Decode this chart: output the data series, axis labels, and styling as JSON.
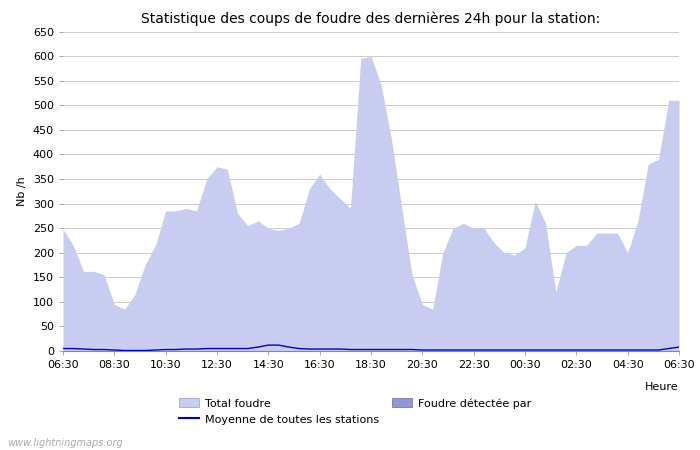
{
  "title": "Statistique des coups de foudre des dernières 24h pour la station:",
  "xlabel": "Heure",
  "ylabel": "Nb /h",
  "watermark": "www.lightningmaps.org",
  "ylim": [
    0,
    650
  ],
  "yticks": [
    0,
    50,
    100,
    150,
    200,
    250,
    300,
    350,
    400,
    450,
    500,
    550,
    600,
    650
  ],
  "x_labels": [
    "06:30",
    "08:30",
    "10:30",
    "12:30",
    "14:30",
    "16:30",
    "18:30",
    "20:30",
    "22:30",
    "00:30",
    "02:30",
    "04:30",
    "06:30"
  ],
  "total_foudre_color": "#c8ccf0",
  "foudre_detectee_color": "#9098d8",
  "moyenne_color": "#0000cc",
  "background_color": "#ffffff",
  "grid_color": "#cccccc",
  "title_fontsize": 10,
  "tick_fontsize": 8,
  "legend_fontsize": 8,
  "total_foudre_values": [
    248,
    215,
    162,
    162,
    155,
    95,
    85,
    115,
    175,
    215,
    285,
    285,
    290,
    285,
    350,
    375,
    370,
    280,
    255,
    265,
    250,
    245,
    250,
    260,
    330,
    360,
    330,
    310,
    290,
    595,
    600,
    540,
    430,
    290,
    155,
    95,
    85,
    200,
    250,
    260,
    250,
    250,
    220,
    200,
    195,
    210,
    305,
    260,
    120,
    200,
    215,
    215,
    240,
    240,
    240,
    200,
    265,
    380,
    390,
    510,
    510
  ],
  "moyenne_values": [
    5,
    5,
    4,
    3,
    3,
    2,
    1,
    1,
    1,
    2,
    3,
    3,
    4,
    4,
    5,
    5,
    5,
    5,
    5,
    8,
    12,
    12,
    8,
    5,
    4,
    4,
    4,
    4,
    3,
    3,
    3,
    3,
    3,
    3,
    3,
    2,
    2,
    2,
    2,
    2,
    2,
    2,
    2,
    2,
    2,
    2,
    2,
    2,
    2,
    2,
    2,
    2,
    2,
    2,
    2,
    2,
    2,
    2,
    2,
    5,
    8
  ]
}
